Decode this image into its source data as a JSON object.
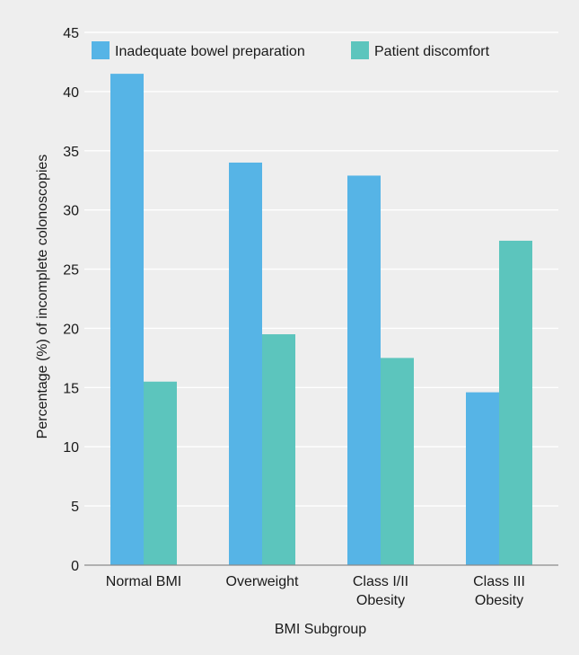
{
  "chart_data": {
    "type": "bar",
    "categories": [
      [
        "Normal BMI"
      ],
      [
        "Overweight"
      ],
      [
        "Class I/II",
        "Obesity"
      ],
      [
        "Class III",
        "Obesity"
      ]
    ],
    "series": [
      {
        "name": "Inadequate bowel preparation",
        "values": [
          41.5,
          34.0,
          32.9,
          14.6
        ],
        "color": "#56b4e6"
      },
      {
        "name": "Patient discomfort",
        "values": [
          15.5,
          19.5,
          17.5,
          27.4
        ],
        "color": "#5cc5bd"
      }
    ],
    "xlabel": "BMI Subgroup",
    "ylabel": "Percentage (%) of incomplete colonoscopies",
    "ylim": [
      0,
      45
    ],
    "yticks": [
      0,
      5,
      10,
      15,
      20,
      25,
      30,
      35,
      40,
      45
    ],
    "grid": true,
    "legend": "top"
  }
}
